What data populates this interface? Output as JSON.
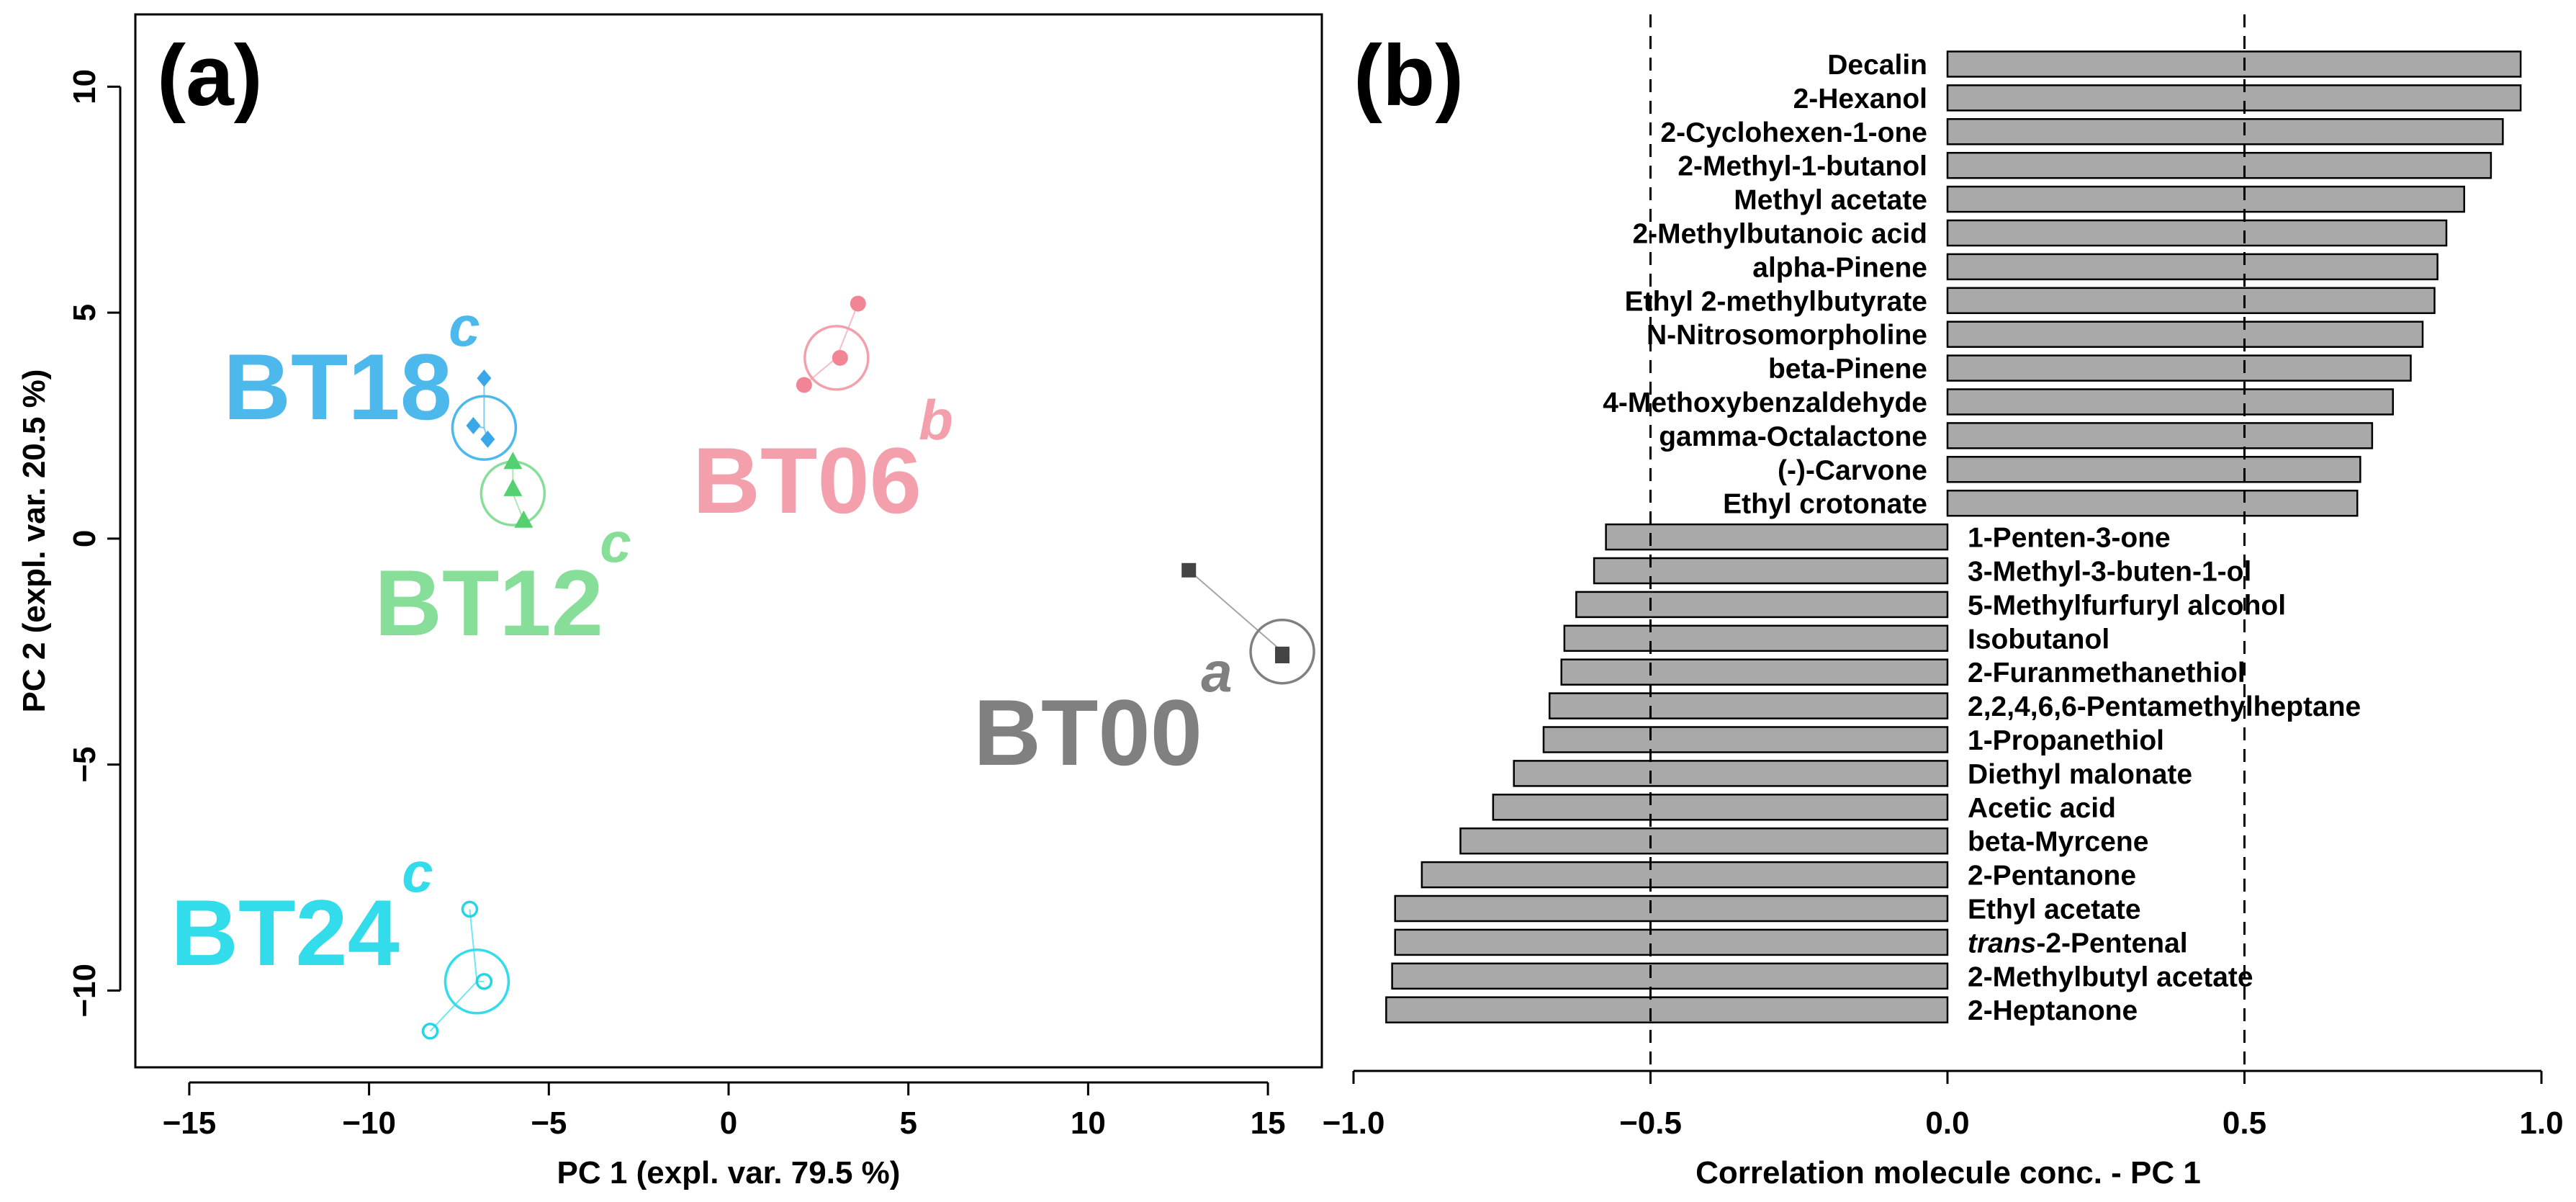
{
  "chart_data": [
    {
      "type": "scatter",
      "panel_label": "(a)",
      "xlabel": "PC 1 (expl. var. 79.5 %)",
      "ylabel": "PC 2 (expl. var. 20.5 %)",
      "xlim": [
        -16.5,
        16.5
      ],
      "ylim": [
        -11.7,
        11.6
      ],
      "xticks": [
        -15,
        -10,
        -5,
        0,
        5,
        10,
        15
      ],
      "xtick_labels": [
        "−15",
        "−10",
        "−5",
        "0",
        "5",
        "10",
        "15"
      ],
      "yticks": [
        -10,
        -5,
        0,
        5,
        10
      ],
      "ytick_labels": [
        "−10",
        "−5",
        "0",
        "5",
        "10"
      ],
      "groups": [
        {
          "name": "BT00",
          "letter": "a",
          "color": "#808080",
          "point_color": "#444444",
          "marker": "square",
          "centroid": [
            15.4,
            -2.5
          ],
          "points": [
            [
              12.8,
              -0.7
            ],
            [
              15.4,
              -2.6
            ],
            [
              15.4,
              -2.55
            ]
          ]
        },
        {
          "name": "BT06",
          "letter": "b",
          "color": "#F4A0AC",
          "point_color": "#F28595",
          "marker": "circle",
          "centroid": [
            3.0,
            4.0
          ],
          "points": [
            [
              3.6,
              5.2
            ],
            [
              3.1,
              4.0
            ],
            [
              2.1,
              3.4
            ]
          ]
        },
        {
          "name": "BT12",
          "letter": "c",
          "color": "#86DE98",
          "point_color": "#55D070",
          "marker": "triangle",
          "centroid": [
            -6.0,
            1.0
          ],
          "points": [
            [
              -6.0,
              1.7
            ],
            [
              -6.0,
              1.1
            ],
            [
              -5.7,
              0.4
            ]
          ]
        },
        {
          "name": "BT18",
          "letter": "c",
          "color": "#4DB8EC",
          "point_color": "#3AA8E8",
          "marker": "diamond",
          "centroid": [
            -6.8,
            2.45
          ],
          "points": [
            [
              -6.8,
              3.55
            ],
            [
              -7.1,
              2.5
            ],
            [
              -6.7,
              2.2
            ]
          ]
        },
        {
          "name": "BT24",
          "letter": "c",
          "color": "#33DCEA",
          "point_color": "#22D6E6",
          "marker": "open-circle",
          "centroid": [
            -7.0,
            -9.8
          ],
          "points": [
            [
              -7.2,
              -8.2
            ],
            [
              -6.8,
              -9.8
            ],
            [
              -8.3,
              -10.9
            ]
          ]
        }
      ]
    },
    {
      "type": "bar",
      "orientation": "horizontal",
      "panel_label": "(b)",
      "xlabel": "Correlation molecule conc. - PC 1",
      "xlim": [
        -1.0,
        1.0
      ],
      "xticks": [
        -1.0,
        -0.5,
        0.0,
        0.5,
        1.0
      ],
      "xtick_labels": [
        "−1.0",
        "−0.5",
        "0.0",
        "0.5",
        "1.0"
      ],
      "reference_lines": [
        -0.5,
        0.5
      ],
      "bar_color": "#A9A9A9",
      "categories": [
        {
          "text": "Decalin"
        },
        {
          "text": "2-Hexanol"
        },
        {
          "text": "2-Cyclohexen-1-one"
        },
        {
          "text": "2-Methyl-1-butanol"
        },
        {
          "text": "Methyl acetate"
        },
        {
          "text": "2-Methylbutanoic acid"
        },
        {
          "text": "alpha-Pinene"
        },
        {
          "text": "Ethyl 2-methylbutyrate"
        },
        {
          "text": "N-Nitrosomorpholine"
        },
        {
          "text": "beta-Pinene"
        },
        {
          "text": "4-Methoxybenzaldehyde"
        },
        {
          "text": "gamma-Octalactone"
        },
        {
          "text": "(-)-Carvone"
        },
        {
          "text": "Ethyl crotonate"
        },
        {
          "text": "1-Penten-3-one"
        },
        {
          "text": "3-Methyl-3-buten-1-ol"
        },
        {
          "text": "5-Methylfurfuryl alcohol"
        },
        {
          "text": "Isobutanol"
        },
        {
          "text": "2-Furanmethanethiol"
        },
        {
          "text": "2,2,4,6,6-Pentamethylheptane"
        },
        {
          "text": "1-Propanethiol"
        },
        {
          "text": "Diethyl malonate"
        },
        {
          "text": "Acetic acid"
        },
        {
          "text": "beta-Myrcene"
        },
        {
          "text": "2-Pentanone"
        },
        {
          "text": "Ethyl acetate"
        },
        {
          "italic": "trans",
          "text": "-2-Pentenal"
        },
        {
          "text": "2-Methylbutyl acetate"
        },
        {
          "text": "2-Heptanone"
        }
      ],
      "values": [
        0.965,
        0.965,
        0.935,
        0.915,
        0.87,
        0.84,
        0.825,
        0.82,
        0.8,
        0.78,
        0.75,
        0.715,
        0.695,
        0.69,
        -0.575,
        -0.595,
        -0.625,
        -0.645,
        -0.65,
        -0.67,
        -0.68,
        -0.73,
        -0.765,
        -0.82,
        -0.885,
        -0.93,
        -0.93,
        -0.935,
        -0.945
      ]
    }
  ]
}
